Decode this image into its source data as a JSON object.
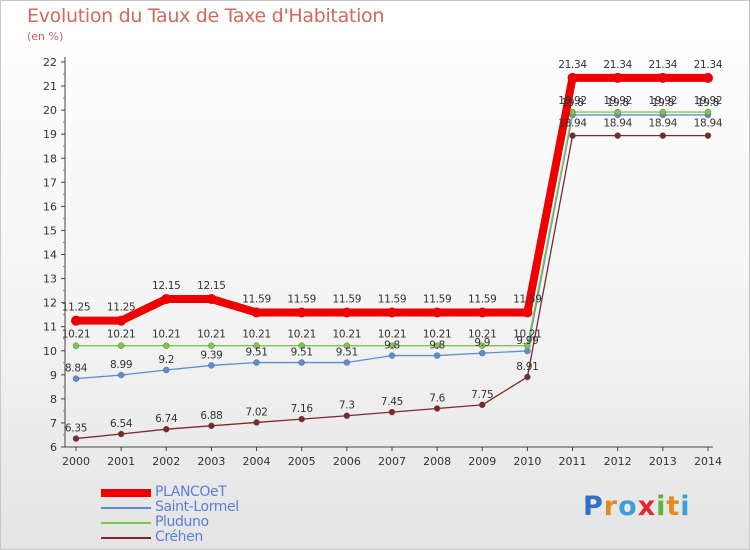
{
  "title": "Evolution du Taux de Taxe d'Habitation",
  "subtitle": "(en %)",
  "brand": {
    "text": "Proxiti",
    "letters": [
      {
        "ch": "P",
        "color": "#2f6fc9"
      },
      {
        "ch": "r",
        "color": "#e28a1e"
      },
      {
        "ch": "o",
        "color": "#3aa0d6"
      },
      {
        "ch": "x",
        "color": "#e2282c"
      },
      {
        "ch": "i",
        "color": "#5fb43a"
      },
      {
        "ch": "t",
        "color": "#e28a1e"
      },
      {
        "ch": "i",
        "color": "#3aa0d6"
      }
    ]
  },
  "chart_data": {
    "type": "line",
    "title": "Evolution du Taux de Taxe d'Habitation",
    "ylabel": "(en %)",
    "xlabel": "",
    "x": [
      "2000",
      "2001",
      "2002",
      "2003",
      "2004",
      "2005",
      "2006",
      "2007",
      "2008",
      "2009",
      "2010",
      "2011",
      "2012",
      "2013",
      "2014"
    ],
    "ylim": [
      6,
      22
    ],
    "yticks": [
      6,
      7,
      8,
      9,
      10,
      11,
      12,
      13,
      14,
      15,
      16,
      17,
      18,
      19,
      20,
      21,
      22
    ],
    "grid": false,
    "legend": "bottom-left",
    "series": [
      {
        "name": "PLANCOeT",
        "color": "#ee0000",
        "width": 8,
        "labels": [
          "11.25",
          "11.25",
          "12.15",
          "12.15",
          "11.59",
          "11.59",
          "11.59",
          "11.59",
          "11.59",
          "11.59",
          "11.59",
          "21.34",
          "21.34",
          "21.34",
          "21.34"
        ],
        "values": [
          11.25,
          11.25,
          12.15,
          12.15,
          11.59,
          11.59,
          11.59,
          11.59,
          11.59,
          11.59,
          11.59,
          21.34,
          21.34,
          21.34,
          21.34
        ]
      },
      {
        "name": "Saint-Lormel",
        "color": "#5b8fd0",
        "width": 1.3,
        "labels": [
          "8.84",
          "8.99",
          "9.2",
          "9.39",
          "9.51",
          "9.51",
          "9.51",
          "9.8",
          "9.8",
          "9.9",
          "9.99",
          "19.8",
          "19.8",
          "19.8",
          "19.8"
        ],
        "values": [
          8.84,
          8.99,
          9.2,
          9.39,
          9.51,
          9.51,
          9.51,
          9.8,
          9.8,
          9.9,
          9.99,
          19.8,
          19.8,
          19.8,
          19.8
        ]
      },
      {
        "name": "Pluduno",
        "color": "#7cc94a",
        "width": 1.3,
        "labels": [
          "10.21",
          "10.21",
          "10.21",
          "10.21",
          "10.21",
          "10.21",
          "10.21",
          "10.21",
          "10.21",
          "10.21",
          "10.21",
          "19.92",
          "19.92",
          "19.92",
          "19.92"
        ],
        "values": [
          10.21,
          10.21,
          10.21,
          10.21,
          10.21,
          10.21,
          10.21,
          10.21,
          10.21,
          10.21,
          10.21,
          19.92,
          19.92,
          19.92,
          19.92
        ]
      },
      {
        "name": "Créhen",
        "color": "#7a2a2a",
        "width": 1.3,
        "labels": [
          "6.35",
          "6.54",
          "6.74",
          "6.88",
          "7.02",
          "7.16",
          "7.3",
          "7.45",
          "7.6",
          "7.75",
          "8.91",
          "18.94",
          "18.94",
          "18.94",
          "18.94"
        ],
        "values": [
          6.35,
          6.54,
          6.74,
          6.88,
          7.02,
          7.16,
          7.3,
          7.45,
          7.6,
          7.75,
          8.91,
          18.94,
          18.94,
          18.94,
          18.94
        ]
      }
    ]
  }
}
